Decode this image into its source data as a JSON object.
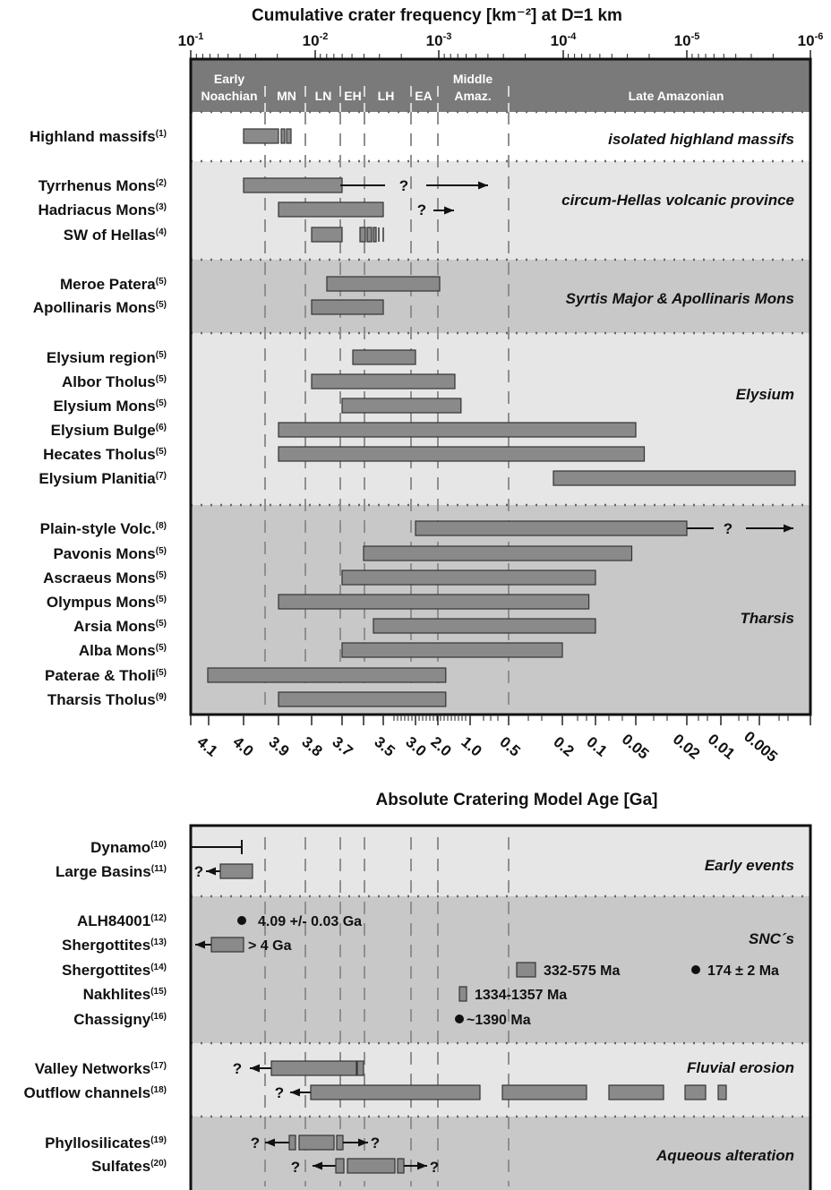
{
  "chart_data": {
    "type": "timeline",
    "title": "Cumulative crater frequency [km⁻²] at D=1 km",
    "top_axis": {
      "scale": "log",
      "range": [
        0.1,
        1e-06
      ],
      "ticks": [
        {
          "value": 0.1,
          "base": "10",
          "exp": "-1"
        },
        {
          "value": 0.01,
          "base": "10",
          "exp": "-2"
        },
        {
          "value": 0.001,
          "base": "10",
          "exp": "-3"
        },
        {
          "value": 0.0001,
          "base": "10",
          "exp": "-4"
        },
        {
          "value": 1e-05,
          "base": "10",
          "exp": "-5"
        },
        {
          "value": 1e-06,
          "base": "10",
          "exp": "-6"
        }
      ]
    },
    "bottom_axis": {
      "label": "Absolute Cratering Model Age [Ga]",
      "tick_labels": [
        "4.1",
        "4.0",
        "3.9",
        "3.8",
        "3.7",
        "3.5",
        "3.0",
        "2.0",
        "1.0",
        "0.5",
        "0.2",
        "0.1",
        "0.05",
        "0.02",
        "0.01",
        "0.005"
      ]
    },
    "epochs": [
      {
        "label": "Early Noachian",
        "lines": [
          "Early",
          "Noachian"
        ]
      },
      {
        "label": "MN",
        "lines": [
          "MN"
        ]
      },
      {
        "label": "LN",
        "lines": [
          "LN"
        ]
      },
      {
        "label": "EH",
        "lines": [
          "EH"
        ]
      },
      {
        "label": "LH",
        "lines": [
          "LH"
        ]
      },
      {
        "label": "EA",
        "lines": [
          "EA"
        ]
      },
      {
        "label": "Middle Amaz.",
        "lines": [
          "Middle",
          "Amaz."
        ]
      },
      {
        "label": "Late Amazonian",
        "lines": [
          "Late Amazonian"
        ]
      }
    ],
    "panel_top": {
      "groups": [
        {
          "name": "isolated highland massifs",
          "items": [
            {
              "label": "Highland massifs",
              "ref": "(1)",
              "from_age": 4.0,
              "to_age": 3.9,
              "annotation": ""
            }
          ]
        },
        {
          "name": "circum-Hellas volcanic province",
          "items": [
            {
              "label": "Tyrrhenus Mons",
              "ref": "(2)",
              "from_age": 4.0,
              "to_age": 3.7,
              "annotation": "?"
            },
            {
              "label": "Hadriacus Mons",
              "ref": "(3)",
              "from_age": 3.9,
              "to_age": 3.5,
              "annotation": "?"
            },
            {
              "label": "SW of Hellas",
              "ref": "(4)",
              "from_age": 3.8,
              "to_age": 3.7,
              "annotation": ""
            }
          ]
        },
        {
          "name": "Syrtis Major & Apollinaris Mons",
          "items": [
            {
              "label": "Meroe Patera",
              "ref": "(5)",
              "from_age": 3.75,
              "to_age": 2.0,
              "annotation": ""
            },
            {
              "label": "Apollinaris Mons",
              "ref": "(5)",
              "from_age": 3.8,
              "to_age": 3.5,
              "annotation": ""
            }
          ]
        },
        {
          "name": "Elysium",
          "items": [
            {
              "label": "Elysium region",
              "ref": "(5)",
              "from_age": 3.65,
              "to_age": 3.0,
              "annotation": ""
            },
            {
              "label": "Albor Tholus",
              "ref": "(5)",
              "from_age": 3.8,
              "to_age": 1.5,
              "annotation": ""
            },
            {
              "label": "Elysium Mons",
              "ref": "(5)",
              "from_age": 3.7,
              "to_age": 1.3,
              "annotation": ""
            },
            {
              "label": "Elysium Bulge",
              "ref": "(6)",
              "from_age": 3.9,
              "to_age": 0.05,
              "annotation": ""
            },
            {
              "label": "Hecates Tholus",
              "ref": "(5)",
              "from_age": 3.9,
              "to_age": 0.045,
              "annotation": ""
            },
            {
              "label": "Elysium Planitia",
              "ref": "(7)",
              "from_age": 0.25,
              "to_age": 0.003,
              "annotation": ""
            }
          ]
        },
        {
          "name": "Tharsis",
          "items": [
            {
              "label": "Plain-style Volc.",
              "ref": "(8)",
              "from_age": 3.0,
              "to_age": 0.02,
              "annotation": "?"
            },
            {
              "label": "Pavonis Mons",
              "ref": "(5)",
              "from_age": 3.6,
              "to_age": 0.055,
              "annotation": ""
            },
            {
              "label": "Ascraeus Mons",
              "ref": "(5)",
              "from_age": 3.7,
              "to_age": 0.1,
              "annotation": ""
            },
            {
              "label": "Olympus Mons",
              "ref": "(5)",
              "from_age": 3.9,
              "to_age": 0.12,
              "annotation": ""
            },
            {
              "label": "Arsia Mons",
              "ref": "(5)",
              "from_age": 3.55,
              "to_age": 0.1,
              "annotation": ""
            },
            {
              "label": "Alba Mons",
              "ref": "(5)",
              "from_age": 3.7,
              "to_age": 0.2,
              "annotation": ""
            },
            {
              "label": "Paterae & Tholi",
              "ref": "(5)",
              "from_age": 4.1,
              "to_age": 1.8,
              "annotation": ""
            },
            {
              "label": "Tharsis Tholus",
              "ref": "(9)",
              "from_age": 3.9,
              "to_age": 1.8,
              "annotation": ""
            }
          ]
        }
      ]
    },
    "panel_bottom": {
      "groups": [
        {
          "name": "Early events",
          "items": [
            {
              "label": "Dynamo",
              "ref": "(10)",
              "annotation": ""
            },
            {
              "label": "Large Basins",
              "ref": "(11)",
              "annotation": "?"
            }
          ]
        },
        {
          "name": "SNC´s",
          "items": [
            {
              "label": "ALH84001",
              "ref": "(12)",
              "annotation": "4.09 +/- 0.03 Ga"
            },
            {
              "label": "Shergottites",
              "ref": "(13)",
              "annotation": "> 4 Ga"
            },
            {
              "label": "Shergottites",
              "ref": "(14)",
              "annotation": "332-575 Ma",
              "annotation2": "174 ± 2 Ma"
            },
            {
              "label": "Nakhlites",
              "ref": "(15)",
              "annotation": "1334-1357 Ma"
            },
            {
              "label": "Chassigny",
              "ref": "(16)",
              "annotation": "~1390 Ma"
            }
          ]
        },
        {
          "name": "Fluvial erosion",
          "items": [
            {
              "label": "Valley Networks",
              "ref": "(17)",
              "annotation": "?"
            },
            {
              "label": "Outflow channels",
              "ref": "(18)",
              "annotation": "?"
            }
          ]
        },
        {
          "name": "Aqueous alteration",
          "items": [
            {
              "label": "Phyllosilicates",
              "ref": "(19)",
              "annotation": "?",
              "annotation2": "?"
            },
            {
              "label": "Sulfates",
              "ref": "(20)",
              "annotation": "?",
              "annotation2": "?"
            }
          ]
        }
      ]
    },
    "colors": {
      "header": "#7a7a7a",
      "light_band": "#e6e6e6",
      "dark_band": "#c8c8c8",
      "white_band": "#ffffff",
      "bar_fill": "#8a8a8a",
      "bar_stroke": "#333333",
      "dashed_line": "#8f8f8f",
      "text": "#111111"
    }
  }
}
